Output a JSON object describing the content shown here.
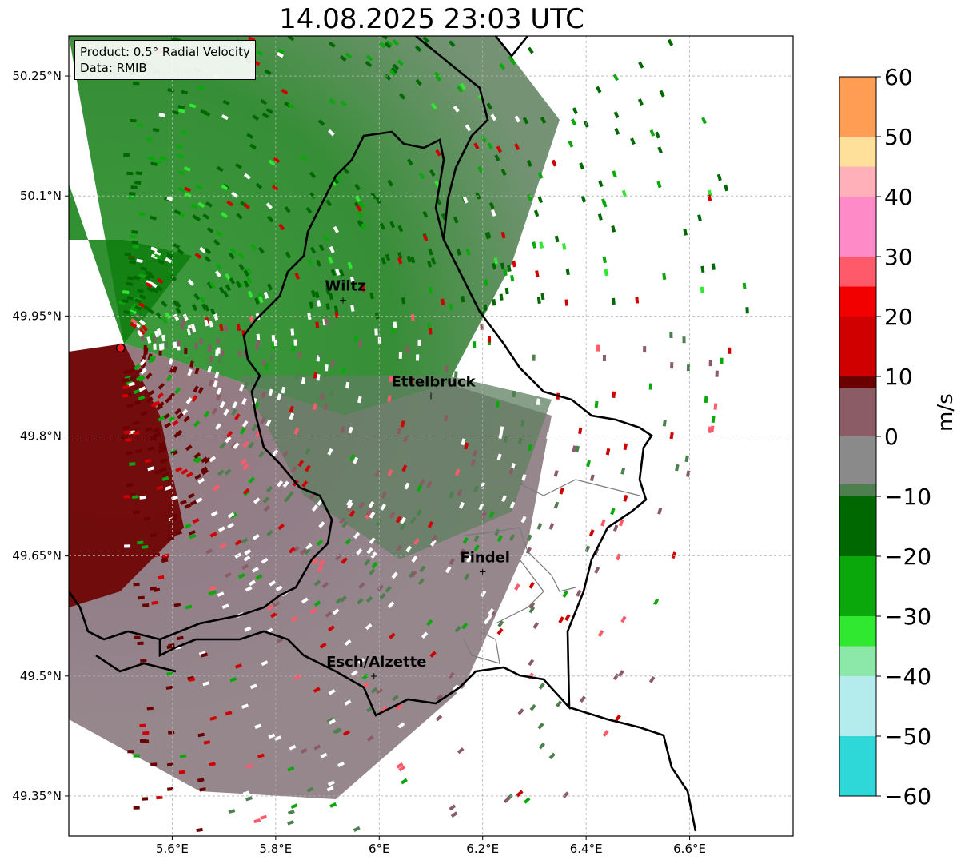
{
  "title": "14.08.2025 23:03 UTC",
  "infobox": {
    "product": "Product: 0.5° Radial Velocity",
    "data": "Data: RMIB"
  },
  "map": {
    "lon_range": [
      5.4,
      6.8
    ],
    "lat_range": [
      49.3,
      50.3
    ],
    "lon_ticks": [
      "5.6°E",
      "5.8°E",
      "6°E",
      "6.2°E",
      "6.4°E",
      "6.6°E"
    ],
    "lat_ticks": [
      "50.25°N",
      "50.1°N",
      "49.95°N",
      "49.8°N",
      "49.65°N",
      "49.5°N",
      "49.35°N"
    ],
    "grid": true,
    "cities": [
      {
        "name": "Wiltz",
        "lon": 5.93,
        "lat": 49.97
      },
      {
        "name": "Ettelbruck",
        "lon": 6.1,
        "lat": 49.85
      },
      {
        "name": "Findel",
        "lon": 6.2,
        "lat": 49.63
      },
      {
        "name": "Esch/Alzette",
        "lon": 5.99,
        "lat": 49.5
      }
    ],
    "radar_site": {
      "lon": 5.5,
      "lat": 49.91
    }
  },
  "colorbar": {
    "label": "m/s",
    "ticks": [
      "60",
      "50",
      "40",
      "30",
      "20",
      "10",
      "0",
      "−10",
      "−20",
      "−30",
      "−40",
      "−50",
      "−60"
    ],
    "range": [
      -60,
      60
    ],
    "colors": {
      "neg60": "#1f78b4",
      "neg50": "#2ed8d8",
      "neg40": "#b4ecee",
      "neg35": "#8be8a8",
      "neg30": "#2fe82f",
      "neg20": "#0aa80a",
      "neg10": "#006800",
      "neg5": "#4e7f4e",
      "zero": "#8a8a8a",
      "pos5": "#8b5c66",
      "pos10": "#6a0000",
      "pos20": "#d00000",
      "pos25": "#f20000",
      "pos30": "#ff5a6a",
      "pos40": "#ff8ac8",
      "pos45": "#ffb0b8",
      "pos50": "#ffe09a",
      "pos60": "#ff9d55"
    }
  }
}
